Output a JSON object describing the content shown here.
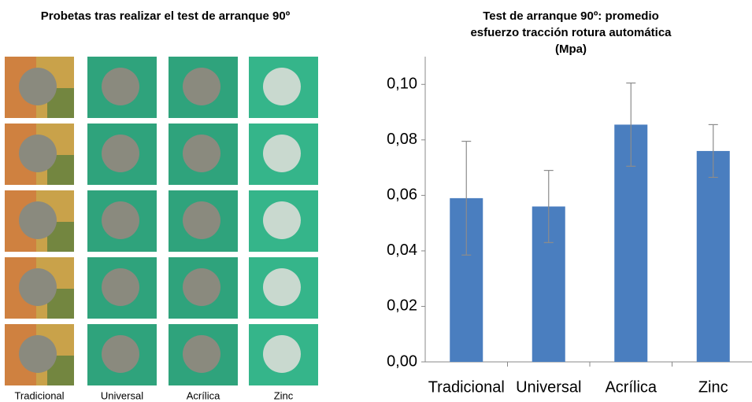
{
  "photo_panel": {
    "title": "Probetas tras realizar el test de arranque 90º",
    "labels": [
      "Tradicional",
      "Universal",
      "Acrílica",
      "Zinc"
    ]
  },
  "chart_data": {
    "type": "bar",
    "title": "Test de arranque 90º: promedio esfuerzo tracción rotura automática (Mpa)",
    "categories": [
      "Tradicional",
      "Universal",
      "Acrílica",
      "Zinc"
    ],
    "values": [
      0.059,
      0.056,
      0.0855,
      0.076
    ],
    "errors": [
      0.0205,
      0.013,
      0.015,
      0.0095
    ],
    "color": "#4a7ebf",
    "error_color": "#8c8c8c",
    "ylim": [
      0,
      0.11
    ],
    "yticks": [
      {
        "value": 0,
        "label": "0,00"
      },
      {
        "value": 0.02,
        "label": "0,02"
      },
      {
        "value": 0.04,
        "label": "0,04"
      },
      {
        "value": 0.06,
        "label": "0,06"
      },
      {
        "value": 0.08,
        "label": "0,08"
      },
      {
        "value": 0.1,
        "label": "0,10"
      }
    ],
    "grid": false
  }
}
